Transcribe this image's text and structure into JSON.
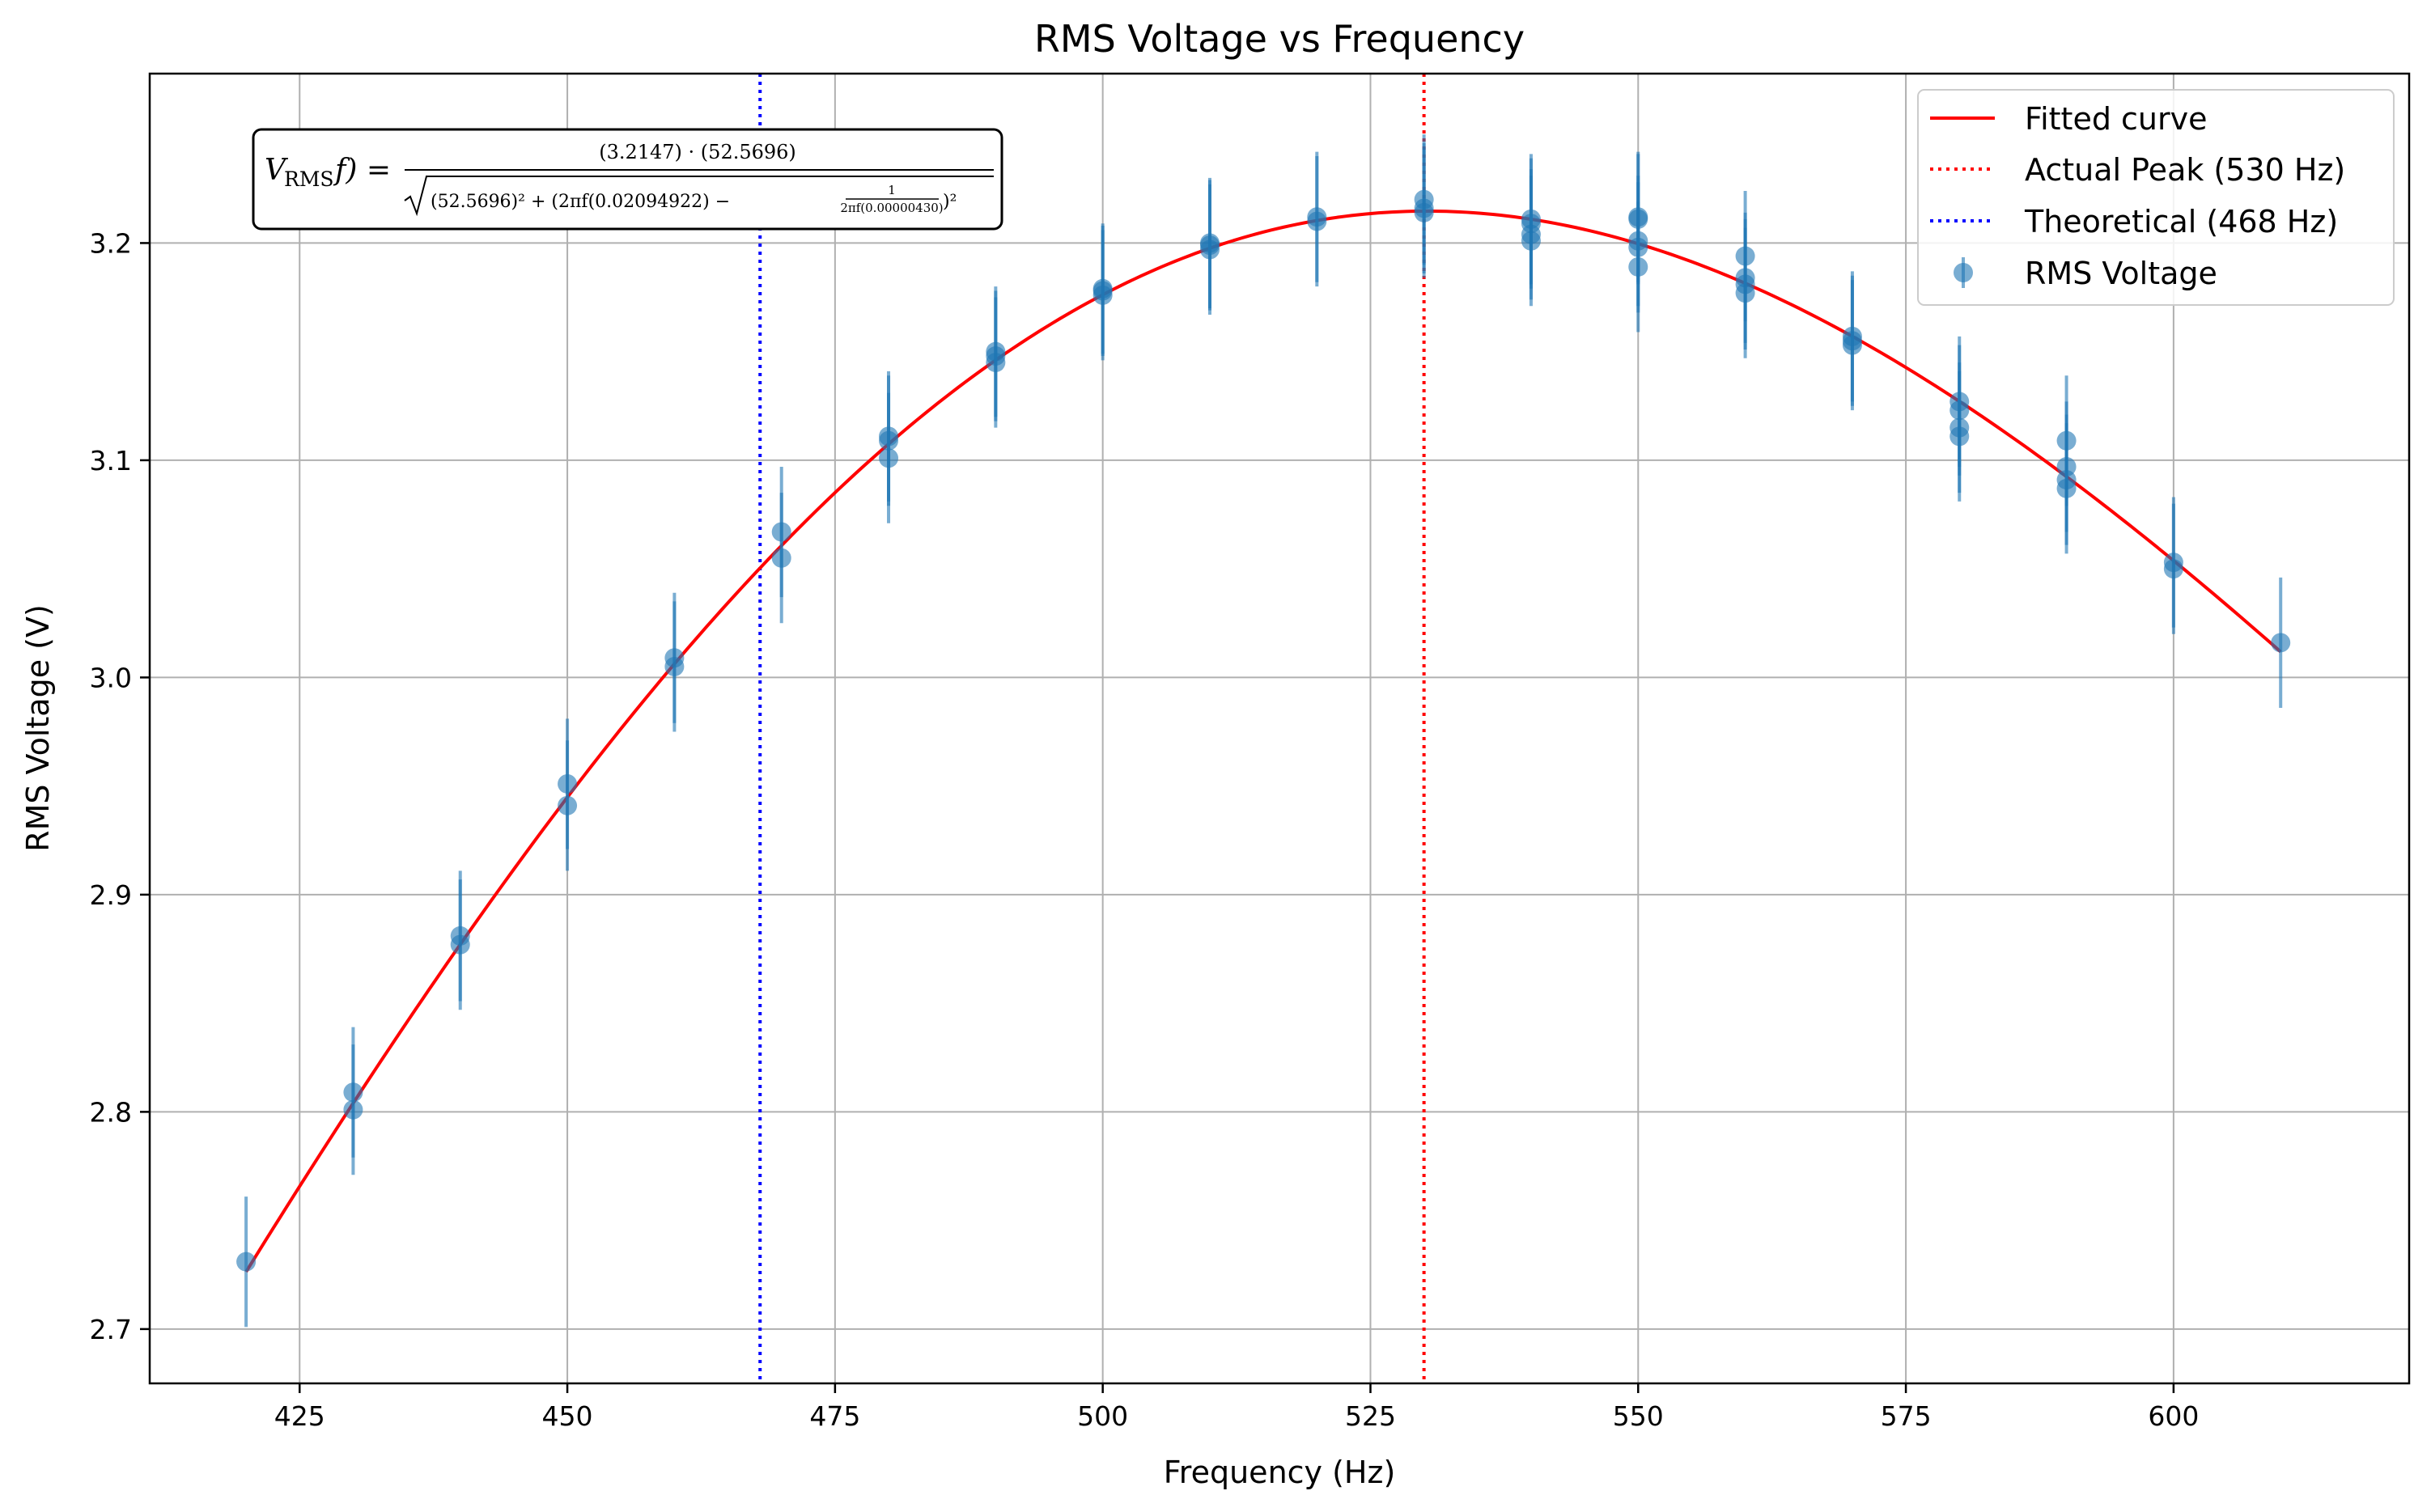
{
  "chart_data": {
    "type": "scatter",
    "title": "RMS Voltage vs Frequency",
    "xlabel": "Frequency (Hz)",
    "ylabel": "RMS Voltage (V)",
    "xlim": [
      411,
      622
    ],
    "ylim": [
      2.675,
      3.278
    ],
    "xticks": [
      425,
      450,
      475,
      500,
      525,
      550,
      575,
      600
    ],
    "yticks": [
      2.7,
      2.8,
      2.9,
      3.0,
      3.1,
      3.2
    ],
    "grid": true,
    "legend_position": "top-right",
    "legend": [
      "Fitted curve",
      "Actual Peak (530 Hz)",
      "Theoretical (468 Hz)",
      "RMS Voltage"
    ],
    "colors": {
      "fit": "#ff0000",
      "actual_peak": "#ff0000",
      "theoretical": "#0000ff",
      "points": "#1f77b4"
    },
    "fit_params": {
      "A": 3.2147,
      "R": 52.5696,
      "L": 0.02094922,
      "C": 4.3e-06
    },
    "equation": {
      "lhs_main": "V",
      "lhs_sub": "RMS",
      "lhs_rest": "f) =",
      "numerator": "(3.2147) · (52.5696)",
      "denominator_main": "(52.5696)² + (2πf(0.02094922) −",
      "inner_numerator": "1",
      "inner_denominator": "2πf(0.00000430)",
      "denominator_tail": ")²"
    },
    "vlines": [
      {
        "name": "Actual Peak (530 Hz)",
        "x": 530,
        "color": "#ff0000"
      },
      {
        "name": "Theoretical (468 Hz)",
        "x": 468,
        "color": "#0000ff"
      }
    ],
    "series": [
      {
        "name": "RMS Voltage",
        "error": 0.03,
        "points": [
          [
            420,
            2.731
          ],
          [
            430,
            2.801
          ],
          [
            430,
            2.809
          ],
          [
            440,
            2.877
          ],
          [
            440,
            2.881
          ],
          [
            450,
            2.941
          ],
          [
            450,
            2.951
          ],
          [
            460,
            3.005
          ],
          [
            460,
            3.009
          ],
          [
            470,
            3.055
          ],
          [
            470,
            3.067
          ],
          [
            480,
            3.101
          ],
          [
            480,
            3.109
          ],
          [
            480,
            3.111
          ],
          [
            490,
            3.145
          ],
          [
            490,
            3.148
          ],
          [
            490,
            3.15
          ],
          [
            500,
            3.176
          ],
          [
            500,
            3.178
          ],
          [
            500,
            3.179
          ],
          [
            510,
            3.197
          ],
          [
            510,
            3.199
          ],
          [
            510,
            3.2
          ],
          [
            520,
            3.21
          ],
          [
            520,
            3.212
          ],
          [
            530,
            3.214
          ],
          [
            530,
            3.216
          ],
          [
            530,
            3.22
          ],
          [
            540,
            3.201
          ],
          [
            540,
            3.204
          ],
          [
            540,
            3.209
          ],
          [
            540,
            3.211
          ],
          [
            550,
            3.189
          ],
          [
            550,
            3.198
          ],
          [
            550,
            3.201
          ],
          [
            550,
            3.211
          ],
          [
            550,
            3.212
          ],
          [
            560,
            3.177
          ],
          [
            560,
            3.181
          ],
          [
            560,
            3.184
          ],
          [
            560,
            3.194
          ],
          [
            570,
            3.153
          ],
          [
            570,
            3.155
          ],
          [
            570,
            3.157
          ],
          [
            580,
            3.111
          ],
          [
            580,
            3.115
          ],
          [
            580,
            3.123
          ],
          [
            580,
            3.127
          ],
          [
            590,
            3.087
          ],
          [
            590,
            3.091
          ],
          [
            590,
            3.097
          ],
          [
            590,
            3.109
          ],
          [
            600,
            3.05
          ],
          [
            600,
            3.053
          ],
          [
            610,
            3.016
          ]
        ]
      }
    ]
  }
}
